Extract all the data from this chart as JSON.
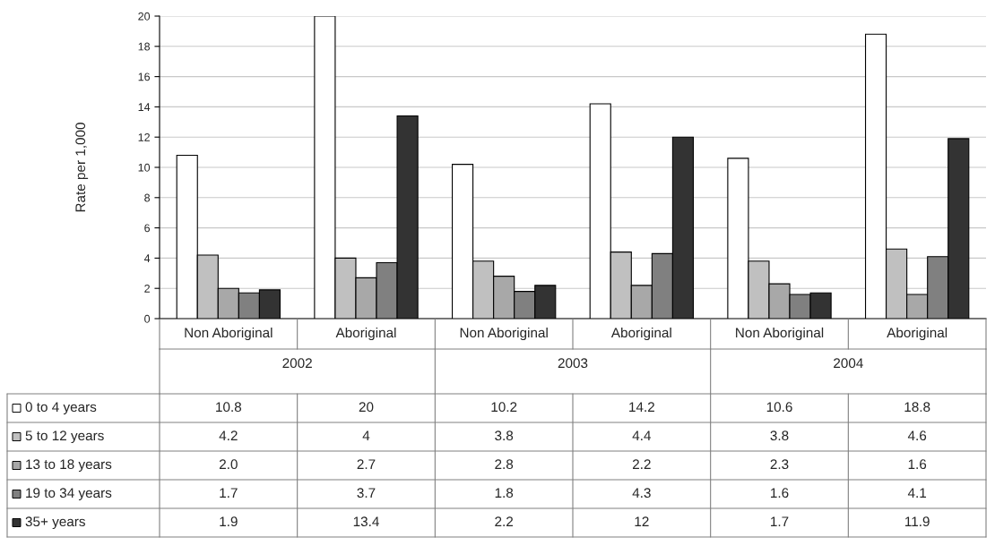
{
  "chart_data": {
    "type": "bar",
    "ylabel": "Rate per 1,000",
    "categories": [
      "Non Aboriginal",
      "Aboriginal",
      "Non Aboriginal",
      "Aboriginal",
      "Non Aboriginal",
      "Aboriginal"
    ],
    "annotations": [
      "2002",
      "2003",
      "2004"
    ],
    "series": [
      {
        "name": "0 to 4 years",
        "color": "#ffffff",
        "values": [
          10.8,
          20,
          10.2,
          14.2,
          10.6,
          18.8
        ],
        "value_labels": [
          "10.8",
          "20",
          "10.2",
          "14.2",
          "10.6",
          "18.8"
        ]
      },
      {
        "name": "5 to 12 years",
        "color": "#c0c0c0",
        "values": [
          4.2,
          4,
          3.8,
          4.4,
          3.8,
          4.6
        ],
        "value_labels": [
          "4.2",
          "4",
          "3.8",
          "4.4",
          "3.8",
          "4.6"
        ]
      },
      {
        "name": "13 to 18 years",
        "color": "#a8a8a8",
        "values": [
          2.0,
          2.7,
          2.8,
          2.2,
          2.3,
          1.6
        ],
        "value_labels": [
          "2.0",
          "2.7",
          "2.8",
          "2.2",
          "2.3",
          "1.6"
        ]
      },
      {
        "name": "19 to 34 years",
        "color": "#808080",
        "values": [
          1.7,
          3.7,
          1.8,
          4.3,
          1.6,
          4.1
        ],
        "value_labels": [
          "1.7",
          "3.7",
          "1.8",
          "4.3",
          "1.6",
          "4.1"
        ]
      },
      {
        "name": "35+ years",
        "color": "#333333",
        "values": [
          1.9,
          13.4,
          2.2,
          12,
          1.7,
          11.9
        ],
        "value_labels": [
          "1.9",
          "13.4",
          "2.2",
          "12",
          "1.7",
          "11.9"
        ]
      }
    ],
    "ylim": [
      0,
      20
    ],
    "yticks": [
      0,
      2,
      4,
      6,
      8,
      10,
      12,
      14,
      16,
      18,
      20
    ],
    "grid": "y",
    "legend": "bottom"
  }
}
